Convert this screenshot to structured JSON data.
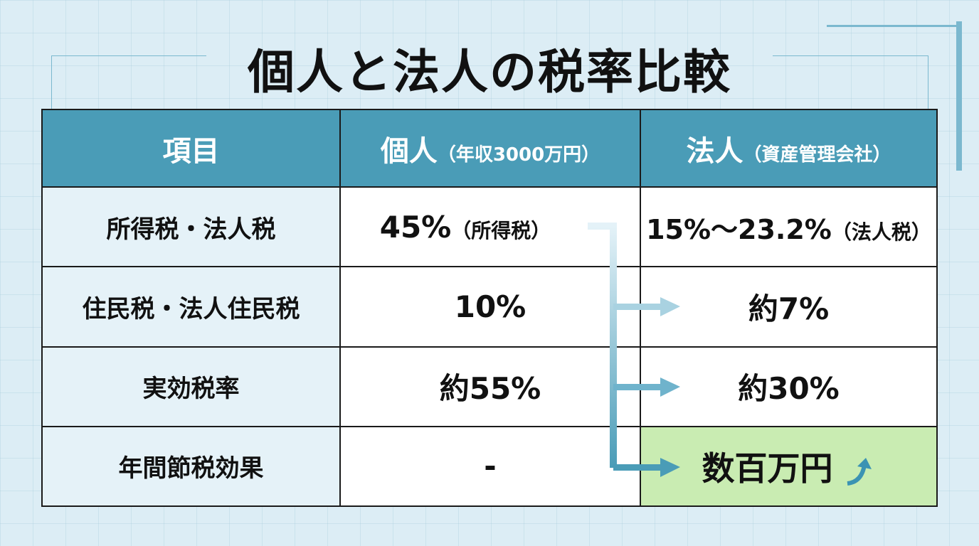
{
  "title": "個人と法人の税率比較",
  "table": {
    "headers": [
      {
        "main": "項目",
        "sub": ""
      },
      {
        "main": "個人",
        "sub": "（年収3000万円）"
      },
      {
        "main": "法人",
        "sub": "（資産管理会社）"
      }
    ],
    "rows": [
      {
        "label": "所得税・法人税",
        "individual": "45%",
        "individual_note": "（所得税）",
        "corporate": "15%〜23.2%",
        "corporate_note": "（法人税）"
      },
      {
        "label": "住民税・法人住民税",
        "individual": "10%",
        "individual_note": "",
        "corporate": "約7%",
        "corporate_note": ""
      },
      {
        "label": "実効税率",
        "individual": "約55%",
        "individual_note": "",
        "corporate": "約30%",
        "corporate_note": ""
      },
      {
        "label": "年間節税効果",
        "individual": "-",
        "individual_note": "",
        "corporate": "数百万円",
        "corporate_note": ""
      }
    ]
  },
  "colors": {
    "header": "#4a9cb7",
    "label_bg": "#e5f2f8",
    "highlight": "#c9ecb2",
    "arrow": "#4a9cb7"
  },
  "icons": {
    "trend": "up-arrow-icon"
  }
}
